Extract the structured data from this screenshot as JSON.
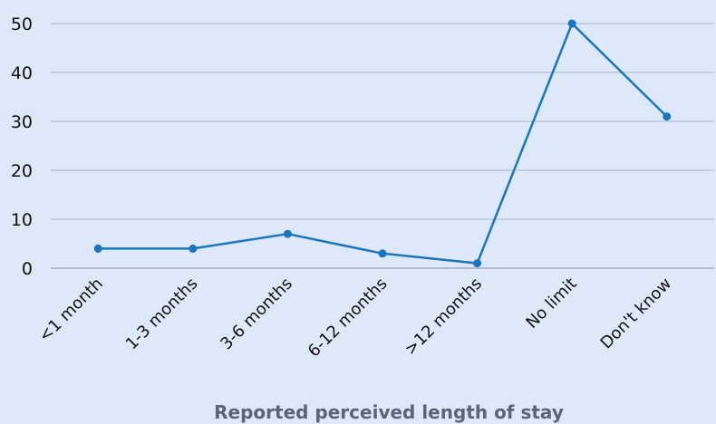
{
  "chart_data": {
    "type": "line",
    "categories": [
      "<1 month",
      "1-3 months",
      "3-6 months",
      "6-12 months",
      ">12 months",
      "No limit",
      "Don't know"
    ],
    "series": [
      {
        "values": [
          4,
          4,
          7,
          3,
          1,
          50,
          31
        ]
      }
    ],
    "title": "",
    "xlabel": "Reported perceived length of stay",
    "ylabel": "",
    "ylim": [
      0,
      50
    ],
    "yticks": [
      0,
      10,
      20,
      30,
      40,
      50
    ],
    "grid": true,
    "line_color": "#1b75bb",
    "background_color": "#dde8f8"
  }
}
